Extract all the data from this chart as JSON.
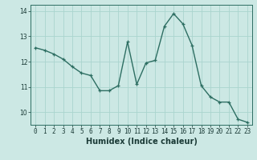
{
  "x": [
    0,
    1,
    2,
    3,
    4,
    5,
    6,
    7,
    8,
    9,
    10,
    11,
    12,
    13,
    14,
    15,
    16,
    17,
    18,
    19,
    20,
    21,
    22,
    23
  ],
  "y": [
    12.55,
    12.45,
    12.3,
    12.1,
    11.8,
    11.55,
    11.45,
    10.85,
    10.85,
    11.05,
    12.78,
    11.1,
    11.95,
    12.05,
    13.4,
    13.9,
    13.5,
    12.65,
    11.05,
    10.6,
    10.4,
    10.4,
    9.72,
    9.6
  ],
  "xlabel": "Humidex (Indice chaleur)",
  "xlim": [
    -0.5,
    23.5
  ],
  "ylim": [
    9.5,
    14.25
  ],
  "yticks": [
    10,
    11,
    12,
    13,
    14
  ],
  "xticks": [
    0,
    1,
    2,
    3,
    4,
    5,
    6,
    7,
    8,
    9,
    10,
    11,
    12,
    13,
    14,
    15,
    16,
    17,
    18,
    19,
    20,
    21,
    22,
    23
  ],
  "line_color": "#2d6e62",
  "marker": "+",
  "bg_color": "#cce8e4",
  "grid_color": "#aad4ce",
  "spine_color": "#2d6e62",
  "text_color": "#1a3a36",
  "font_size_tick": 5.5,
  "font_size_label": 7,
  "linewidth": 1.0,
  "markersize": 3.5,
  "marker_linewidth": 0.9
}
